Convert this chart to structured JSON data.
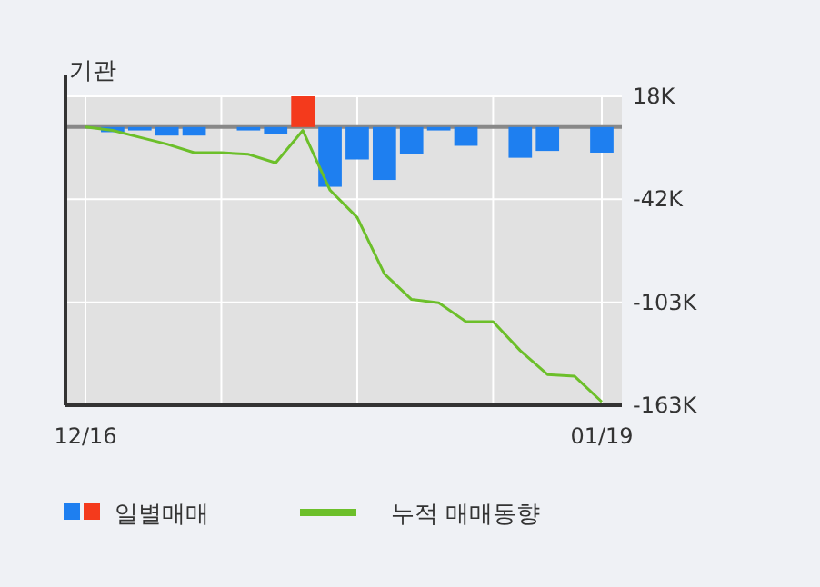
{
  "chart_data": {
    "type": "bar",
    "title": "기관",
    "categories": [
      "12/16",
      null,
      null,
      null,
      null,
      null,
      null,
      null,
      null,
      null,
      null,
      null,
      null,
      null,
      null,
      null,
      null,
      null,
      null,
      "01/19"
    ],
    "series": [
      {
        "name": "일별매매",
        "colors": [
          "#1e7ff0",
          "#1e7ff0",
          "#1e7ff0",
          "#1e7ff0",
          "#1e7ff0",
          "#1e7ff0",
          "#1e7ff0",
          "#1e7ff0",
          "#f43a1c",
          "#1e7ff0",
          "#1e7ff0",
          "#1e7ff0",
          "#1e7ff0",
          "#1e7ff0",
          "#1e7ff0",
          "#1e7ff0",
          "#1e7ff0",
          "#1e7ff0",
          "#1e7ff0",
          "#1e7ff0"
        ],
        "values": [
          null,
          -3,
          -2,
          -5,
          -5,
          null,
          -2,
          -4,
          18,
          -35,
          -19,
          -31,
          -16,
          -2,
          -11,
          null,
          -18,
          -14,
          null,
          -15
        ]
      },
      {
        "name": "누적 매매동향",
        "type": "line",
        "color": "#6cbf2a",
        "values": [
          0,
          -2,
          -6,
          -10,
          -15,
          -15,
          -16,
          -21,
          -2,
          -37,
          -53,
          -86,
          -101,
          -103,
          -114,
          -114,
          -131,
          -145,
          -146,
          -161
        ]
      }
    ],
    "ylim": [
      -163,
      18
    ],
    "yticks": [
      {
        "value": 18,
        "label": "18K"
      },
      {
        "value": -42.33,
        "label": "-42K"
      },
      {
        "value": -102.67,
        "label": "-103K"
      },
      {
        "value": -163,
        "label": "-163K"
      }
    ],
    "grid": true,
    "legend": "bottom"
  }
}
